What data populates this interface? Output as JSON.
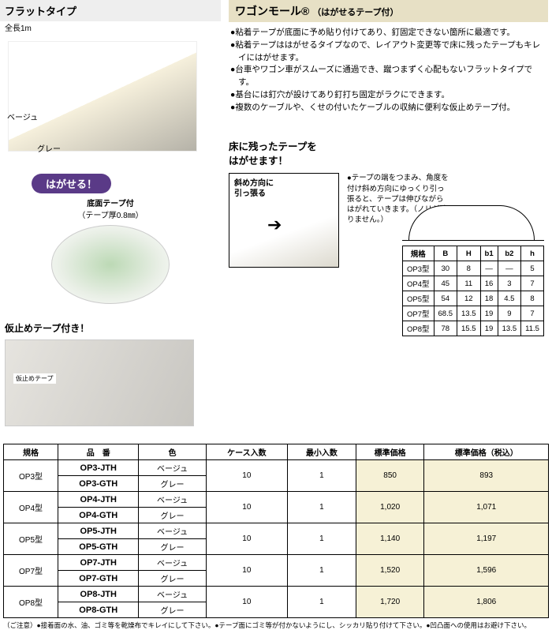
{
  "left": {
    "flat_title": "フラットタイプ",
    "flat_sub": "全長1m",
    "color_beige": "ベージュ",
    "color_gray": "グレー",
    "pill": "はがせる！",
    "tape_sub1": "底面テープ付",
    "tape_sub2": "（テープ厚0.8㎜）",
    "kari_title": "仮止めテープ付き！",
    "kari_tag": "仮止めテープ"
  },
  "right": {
    "title": "ワゴンモール®",
    "title_sub": "（はがせるテープ付）",
    "bullets": [
      "●粘着テープが底面に予め貼り付けてあり、釘固定できない箇所に最適です。",
      "●粘着テープははがせるタイプなので、レイアウト変更等で床に残ったテープもキレイにはがせます。",
      "●台車やワゴン車がスムーズに通過でき、蹴つまずく心配もないフラットタイプです。",
      "●基台には釘穴が設けてあり釘打ち固定がラクにできます。",
      "●複数のケーブルや、くせの付いたケーブルの収納に便利な仮止めテープ付。"
    ],
    "peel_title1": "床に残ったテープを",
    "peel_title2": "はがせます！",
    "peel_box_note1": "斜め方向に",
    "peel_box_note2": "引っ張る",
    "peel_text": "●テープの端をつまみ、角度を付け斜め方向にゆっくり引っ張ると、テープは伸びながらはがれていきます。（ノリが残りません。）"
  },
  "dim": {
    "headers": [
      "規格",
      "B",
      "H",
      "b1",
      "b2",
      "h"
    ],
    "rows": [
      [
        "OP3型",
        "30",
        "8",
        "—",
        "—",
        "5"
      ],
      [
        "OP4型",
        "45",
        "11",
        "16",
        "3",
        "7"
      ],
      [
        "OP5型",
        "54",
        "12",
        "18",
        "4.5",
        "8"
      ],
      [
        "OP7型",
        "68.5",
        "13.5",
        "19",
        "9",
        "7"
      ],
      [
        "OP8型",
        "78",
        "15.5",
        "19",
        "13.5",
        "11.5"
      ]
    ]
  },
  "price": {
    "headers": [
      "規格",
      "品　番",
      "色",
      "ケース入数",
      "最小入数",
      "標準価格",
      "標準価格（税込）"
    ],
    "groups": [
      {
        "spec": "OP3型",
        "rows": [
          [
            "OP3-JTH",
            "ベージュ"
          ],
          [
            "OP3-GTH",
            "グレー"
          ]
        ],
        "case": "10",
        "min": "1",
        "p1": "850",
        "p2": "893"
      },
      {
        "spec": "OP4型",
        "rows": [
          [
            "OP4-JTH",
            "ベージュ"
          ],
          [
            "OP4-GTH",
            "グレー"
          ]
        ],
        "case": "10",
        "min": "1",
        "p1": "1,020",
        "p2": "1,071"
      },
      {
        "spec": "OP5型",
        "rows": [
          [
            "OP5-JTH",
            "ベージュ"
          ],
          [
            "OP5-GTH",
            "グレー"
          ]
        ],
        "case": "10",
        "min": "1",
        "p1": "1,140",
        "p2": "1,197"
      },
      {
        "spec": "OP7型",
        "rows": [
          [
            "OP7-JTH",
            "ベージュ"
          ],
          [
            "OP7-GTH",
            "グレー"
          ]
        ],
        "case": "10",
        "min": "1",
        "p1": "1,520",
        "p2": "1,596"
      },
      {
        "spec": "OP8型",
        "rows": [
          [
            "OP8-JTH",
            "ベージュ"
          ],
          [
            "OP8-GTH",
            "グレー"
          ]
        ],
        "case": "10",
        "min": "1",
        "p1": "1,720",
        "p2": "1,806"
      }
    ],
    "footer": "（ご注意）●接着面の水、油、ゴミ等を乾燥布でキレイにして下さい。●テープ面にゴミ等が付かないようにし、シッカリ貼り付けて下さい。●凹凸面への使用はお避け下さい。"
  }
}
